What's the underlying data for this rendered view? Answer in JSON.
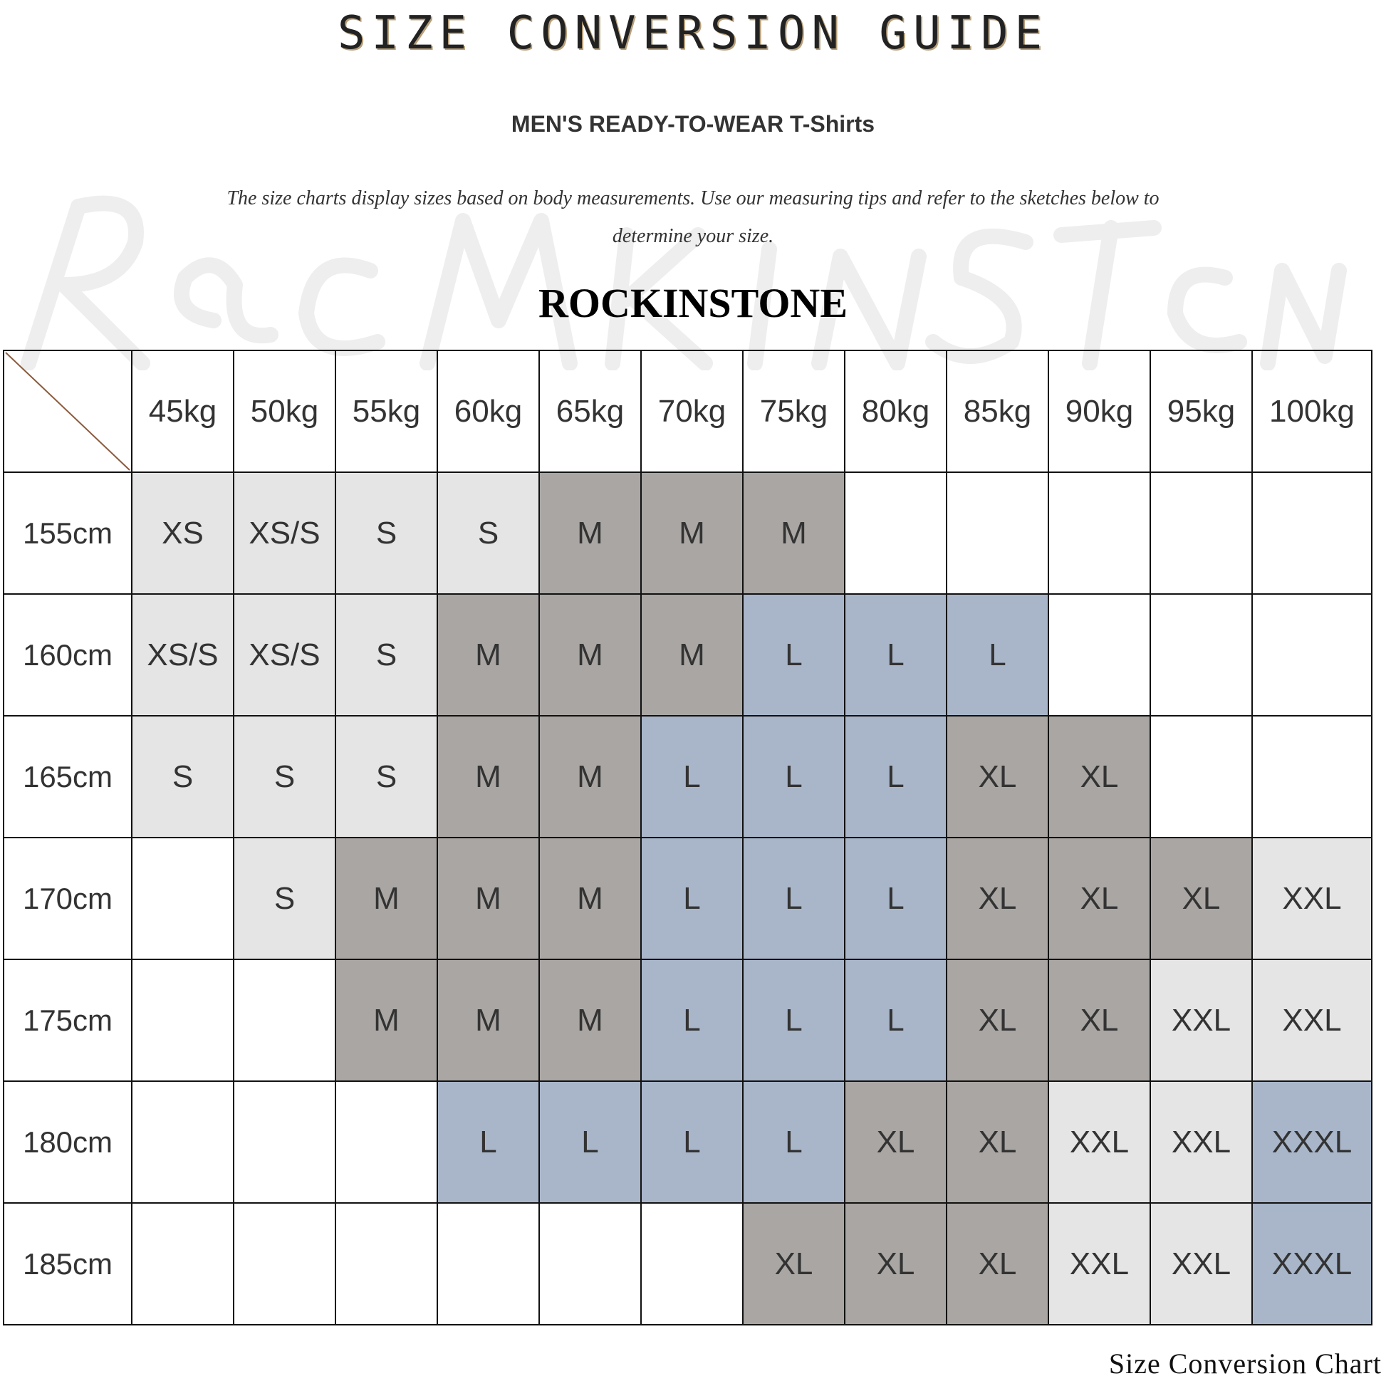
{
  "title": "SIZE CONVERSION GUIDE",
  "subtitle": "MEN'S READY-TO-WEAR T-Shirts",
  "description": "The size charts display sizes based on body measurements. Use our measuring tips and refer to the sketches below to determine your size.",
  "brand": "ROCKINSTONE",
  "watermark": "Rockinstone",
  "footer": "Size Conversion Chart",
  "colors": {
    "light": "#e5e5e5",
    "dark": "#aaa6a4",
    "blue": "#a9b6ca",
    "diagonal": "#8b5a3c"
  },
  "size_colors": {
    "XS": "light",
    "XS/S": "light",
    "S": "light",
    "XXL": "light",
    "M": "dark",
    "XL": "dark",
    "L": "blue",
    "XXXL": "blue"
  },
  "weights": [
    "45kg",
    "50kg",
    "55kg",
    "60kg",
    "65kg",
    "70kg",
    "75kg",
    "80kg",
    "85kg",
    "90kg",
    "95kg",
    "100kg"
  ],
  "rows": [
    {
      "height": "155cm",
      "sizes": [
        "XS",
        "XS/S",
        "S",
        "S",
        "M",
        "M",
        "M",
        "",
        "",
        "",
        "",
        ""
      ]
    },
    {
      "height": "160cm",
      "sizes": [
        "XS/S",
        "XS/S",
        "S",
        "M",
        "M",
        "M",
        "L",
        "L",
        "L",
        "",
        "",
        ""
      ]
    },
    {
      "height": "165cm",
      "sizes": [
        "S",
        "S",
        "S",
        "M",
        "M",
        "L",
        "L",
        "L",
        "XL",
        "XL",
        "",
        ""
      ]
    },
    {
      "height": "170cm",
      "sizes": [
        "",
        "S",
        "M",
        "M",
        "M",
        "L",
        "L",
        "L",
        "XL",
        "XL",
        "XL",
        "XXL"
      ]
    },
    {
      "height": "175cm",
      "sizes": [
        "",
        "",
        "M",
        "M",
        "M",
        "L",
        "L",
        "L",
        "XL",
        "XL",
        "XXL",
        "XXL"
      ]
    },
    {
      "height": "180cm",
      "sizes": [
        "",
        "",
        "",
        "L",
        "L",
        "L",
        "L",
        "XL",
        "XL",
        "XXL",
        "XXL",
        "XXXL"
      ]
    },
    {
      "height": "185cm",
      "sizes": [
        "",
        "",
        "",
        "",
        "",
        "",
        "XL",
        "XL",
        "XL",
        "XXL",
        "XXL",
        "XXXL"
      ]
    }
  ]
}
